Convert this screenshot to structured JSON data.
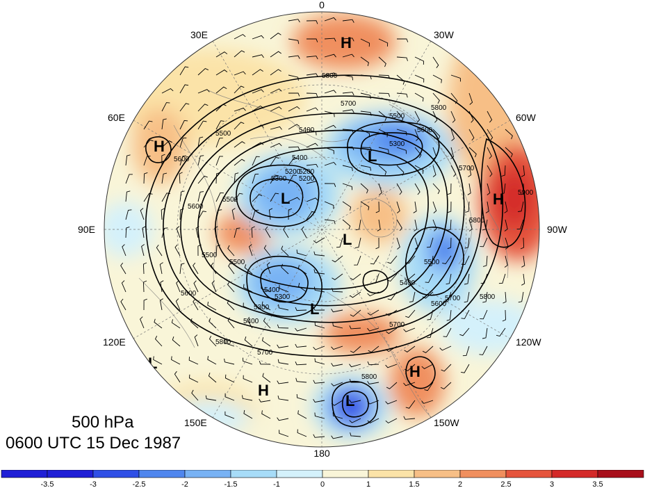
{
  "title": {
    "level": "500 hPa",
    "date": "0600 UTC 15 Dec 1987"
  },
  "longitude_labels": {
    "lon_0": "0",
    "lon_30w": "30W",
    "lon_30e": "30E",
    "lon_60w": "60W",
    "lon_60e": "60E",
    "lon_90w": "90W",
    "lon_90e": "90E",
    "lon_120w": "120W",
    "lon_120e": "120E",
    "lon_150w": "150W",
    "lon_150e": "150E",
    "lon_180": "180"
  },
  "pressure_centers": [
    {
      "label": "H"
    },
    {
      "label": "H"
    },
    {
      "label": "H"
    },
    {
      "label": "H"
    },
    {
      "label": "H"
    },
    {
      "label": "L"
    },
    {
      "label": "L"
    },
    {
      "label": "L"
    },
    {
      "label": "L"
    },
    {
      "label": "L"
    },
    {
      "label": "L"
    }
  ],
  "contour_labels": [
    "5800",
    "5700",
    "5800",
    "5600",
    "5500",
    "5400",
    "5300",
    "5600",
    "5500",
    "5400",
    "5300",
    "5200",
    "5500",
    "5400",
    "5300",
    "5200",
    "5500",
    "5600",
    "5700",
    "5800",
    "5900",
    "5800",
    "5700",
    "5600",
    "5500",
    "5400",
    "5800",
    "5700",
    "5600",
    "5500",
    "5400",
    "5300",
    "5200",
    "5800",
    "5700"
  ],
  "colorbar": {
    "ticks": [
      "-3.5",
      "-3",
      "-2.5",
      "-2",
      "-1.5",
      "-1",
      "0",
      "1",
      "1.5",
      "2",
      "2.5",
      "3",
      "3.5"
    ],
    "colors": [
      "#1f1fd6",
      "#2f4fe6",
      "#4f86ee",
      "#78b2f4",
      "#a7dcf8",
      "#d4f1fb",
      "#f9f5d8",
      "#fbe3a8",
      "#f7bf86",
      "#f08f5e",
      "#e5543c",
      "#d42a29",
      "#a80f1b"
    ]
  },
  "colors": {
    "positive_anom": "#e8774f",
    "negative_anom": "#4f86ee",
    "contour": "#000000"
  }
}
